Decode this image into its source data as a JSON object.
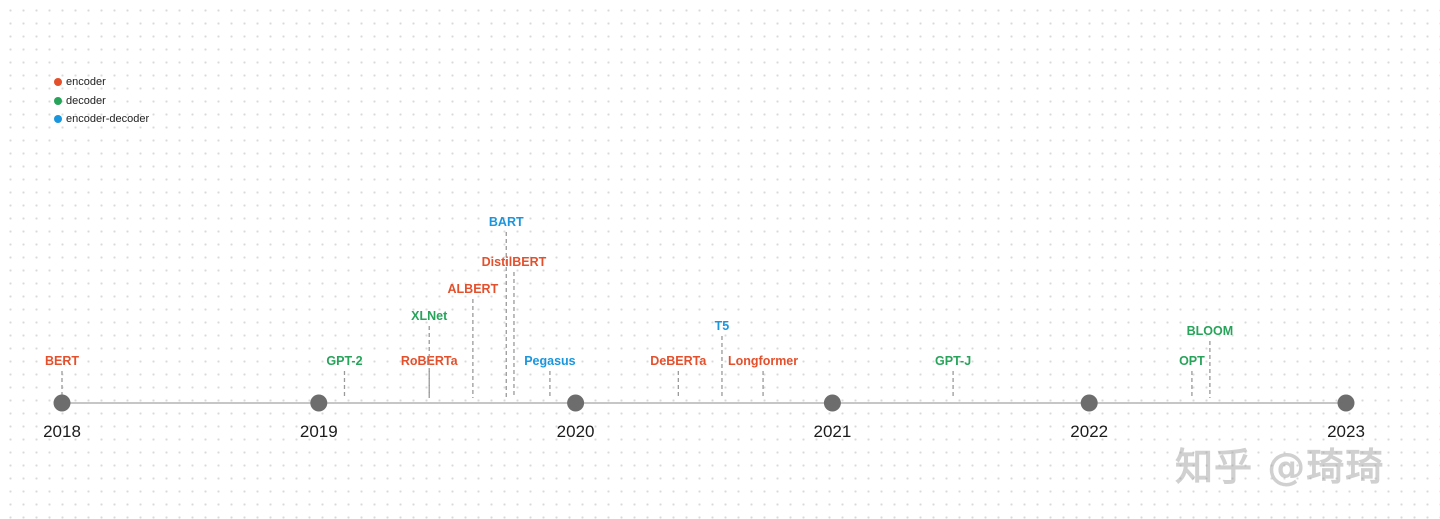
{
  "colors": {
    "encoder": "#e4502c",
    "decoder": "#27a35a",
    "encoder-decoder": "#1a96de",
    "axis": "#b3b3b3",
    "year_dot": "#6d6d6d"
  },
  "legend": [
    {
      "key": "encoder",
      "label": "encoder"
    },
    {
      "key": "decoder",
      "label": "decoder"
    },
    {
      "key": "encoder-decoder",
      "label": "encoder-decoder"
    }
  ],
  "years": [
    "2018",
    "2019",
    "2020",
    "2021",
    "2022",
    "2023"
  ],
  "models": [
    {
      "name": "BERT",
      "type": "encoder",
      "date": 2018.0
    },
    {
      "name": "GPT-2",
      "type": "decoder",
      "date": 2019.1
    },
    {
      "name": "RoBERTa",
      "type": "encoder",
      "date": 2019.43
    },
    {
      "name": "XLNet",
      "type": "decoder",
      "date": 2019.43
    },
    {
      "name": "ALBERT",
      "type": "encoder",
      "date": 2019.6
    },
    {
      "name": "BART",
      "type": "encoder-decoder",
      "date": 2019.73
    },
    {
      "name": "DistilBERT",
      "type": "encoder",
      "date": 2019.76
    },
    {
      "name": "Pegasus",
      "type": "encoder-decoder",
      "date": 2019.9
    },
    {
      "name": "DeBERTa",
      "type": "encoder",
      "date": 2020.4
    },
    {
      "name": "T5",
      "type": "encoder-decoder",
      "date": 2020.57
    },
    {
      "name": "Longformer",
      "type": "encoder",
      "date": 2020.73
    },
    {
      "name": "GPT-J",
      "type": "decoder",
      "date": 2021.47
    },
    {
      "name": "OPT",
      "type": "decoder",
      "date": 2022.4
    },
    {
      "name": "BLOOM",
      "type": "decoder",
      "date": 2022.47
    }
  ],
  "watermark": "知乎 @琦琦"
}
